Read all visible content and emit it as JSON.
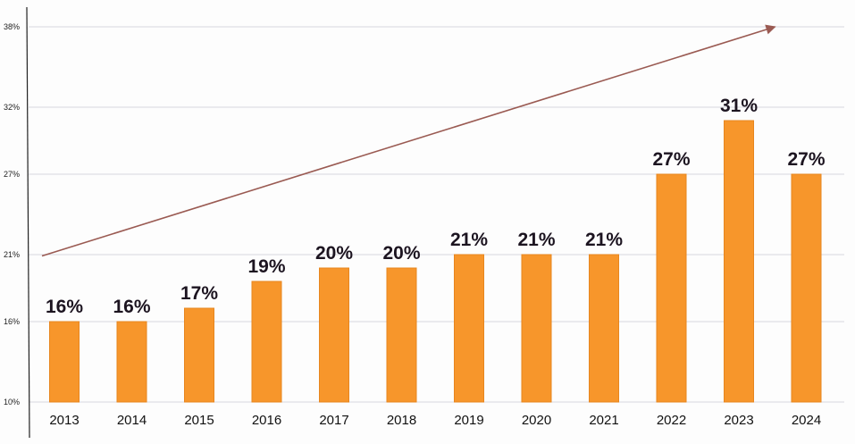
{
  "chart_data": {
    "type": "bar",
    "categories": [
      "2013",
      "2014",
      "2015",
      "2016",
      "2017",
      "2018",
      "2019",
      "2020",
      "2021",
      "2022",
      "2023",
      "2024"
    ],
    "values": [
      16,
      16,
      17,
      19,
      20,
      20,
      21,
      21,
      21,
      27,
      31,
      27
    ],
    "data_labels": [
      "16%",
      "16%",
      "17%",
      "19%",
      "20%",
      "20%",
      "21%",
      "21%",
      "21%",
      "27%",
      "31%",
      "27%"
    ],
    "y_ticks": [
      {
        "value": 10,
        "label": "10%"
      },
      {
        "value": 16,
        "label": "16%"
      },
      {
        "value": 21,
        "label": "21%"
      },
      {
        "value": 27,
        "label": "27%"
      },
      {
        "value": 32,
        "label": "32%"
      },
      {
        "value": 38,
        "label": "38%"
      }
    ],
    "ylim": [
      10,
      38
    ],
    "grid": true,
    "trend_arrow": {
      "from": {
        "x": "2013",
        "y": 20.9
      },
      "to": {
        "x": "2024",
        "y": 38
      }
    },
    "colors": {
      "bar": "#f7962b",
      "bar_edge": "#e7861f",
      "arrow": "#9a5a52",
      "grid": "#c9c9d4",
      "axis": "#222222"
    }
  }
}
